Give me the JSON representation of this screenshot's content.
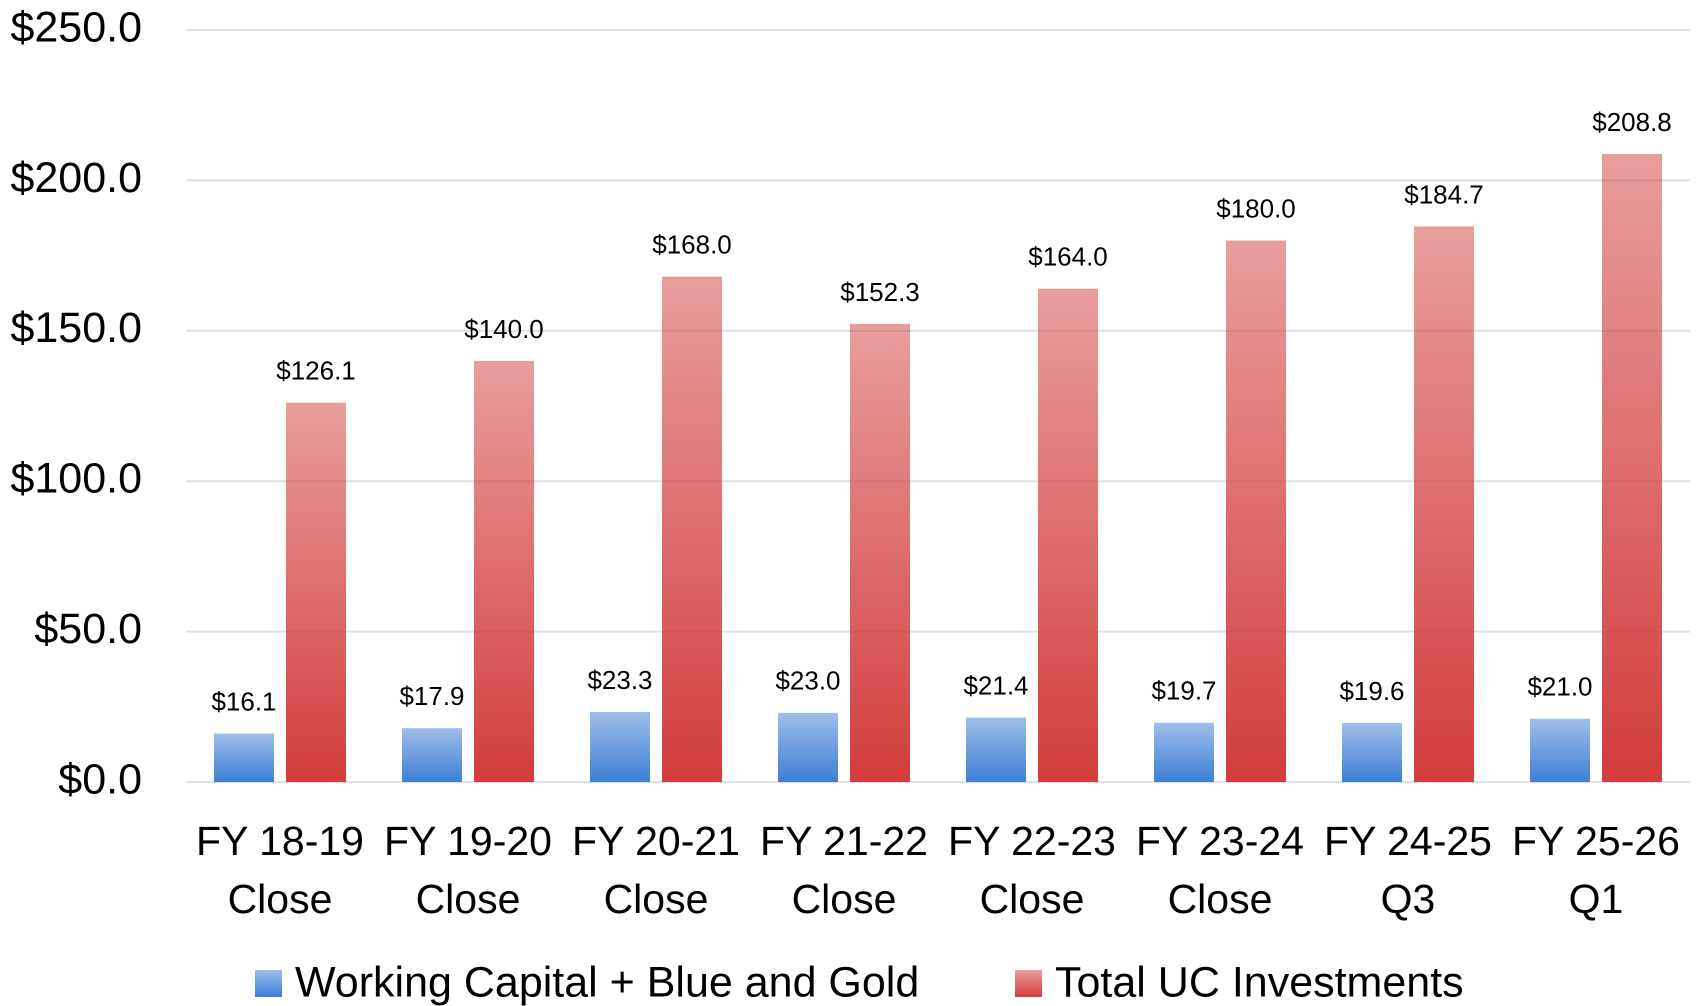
{
  "chart_data": {
    "type": "bar",
    "categories": [
      [
        "FY 18-19",
        "Close"
      ],
      [
        "FY 19-20",
        "Close"
      ],
      [
        "FY 20-21",
        "Close"
      ],
      [
        "FY 21-22",
        "Close"
      ],
      [
        "FY 22-23",
        "Close"
      ],
      [
        "FY 23-24",
        "Close"
      ],
      [
        "FY 24-25",
        "Q3"
      ],
      [
        "FY 25-26",
        "Q1"
      ]
    ],
    "series": [
      {
        "name": "Working Capital + Blue and Gold",
        "color": "#3e7ed6",
        "values": [
          16.1,
          17.9,
          23.3,
          23.0,
          21.4,
          19.7,
          19.6,
          21.0
        ],
        "value_labels": [
          "$16.1",
          "$17.9",
          "$23.3",
          "$23.0",
          "$21.4",
          "$19.7",
          "$19.6",
          "$21.0"
        ]
      },
      {
        "name": "Total UC Investments",
        "color": "#d23c3c",
        "values": [
          126.1,
          140.0,
          168.0,
          152.3,
          164.0,
          180.0,
          184.7,
          208.8
        ],
        "value_labels": [
          "$126.1",
          "$140.0",
          "$168.0",
          "$152.3",
          "$164.0",
          "$180.0",
          "$184.7",
          "$208.8"
        ]
      }
    ],
    "ylim": [
      0,
      250
    ],
    "yticks": [
      {
        "value": 0,
        "label": "$0.0"
      },
      {
        "value": 50,
        "label": "$50.0"
      },
      {
        "value": 100,
        "label": "$100.0"
      },
      {
        "value": 150,
        "label": "$150.0"
      },
      {
        "value": 200,
        "label": "$200.0"
      },
      {
        "value": 250,
        "label": "$250.0"
      }
    ],
    "grid": true,
    "legend": "bottom"
  }
}
